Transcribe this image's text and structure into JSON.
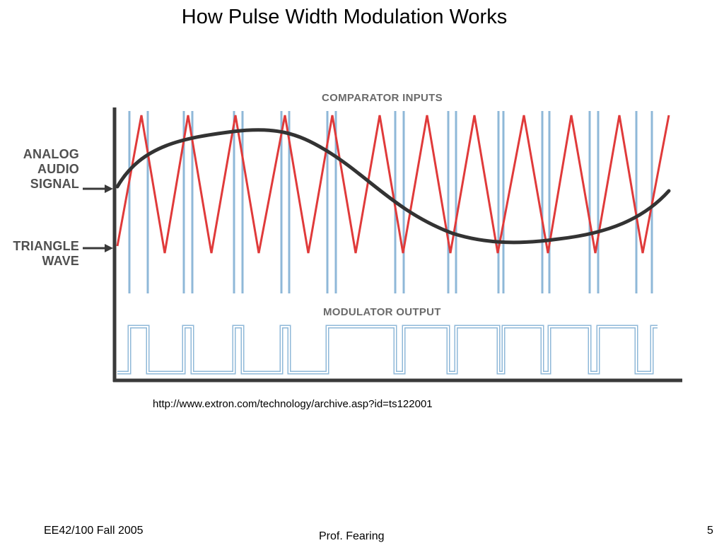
{
  "slide": {
    "title": "How Pulse Width Modulation Works",
    "source_url": "http://www.extron.com/technology/archive.asp?id=ts122001",
    "footer_left": "EE42/100 Fall 2005",
    "footer_center": "Prof. Fearing",
    "page_number": "5"
  },
  "diagram": {
    "labels": {
      "analog_line1": "ANALOG",
      "analog_line2": "AUDIO",
      "analog_line3": "SIGNAL",
      "triangle_line1": "TRIANGLE",
      "triangle_line2": "WAVE",
      "comparator_inputs": "COMPARATOR INPUTS",
      "modulator_output": "MODULATOR OUTPUT"
    },
    "colors": {
      "triangle_wave": "#e03a3a",
      "audio_signal": "#333333",
      "pulse_lines": "#8fb8d8",
      "axis": "#3a3a3a",
      "label_text": "#505050"
    }
  }
}
